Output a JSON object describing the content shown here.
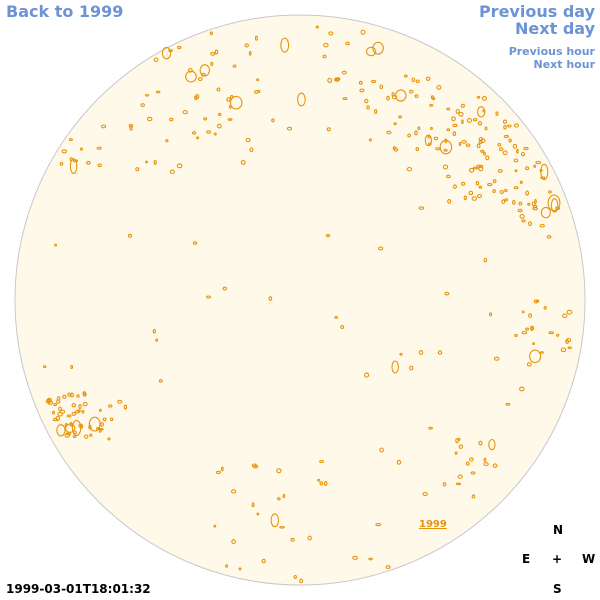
{
  "nav": {
    "back": "Back to 1999",
    "previous_day": "Previous day",
    "next_day": "Next day",
    "previous_hour": "Previous hour",
    "next_hour": "Next hour"
  },
  "timestamp": "1999-03-01T18:01:32",
  "year_label": "1999",
  "compass": {
    "north": "N",
    "east": "E",
    "center": "+",
    "west": "W",
    "south": "S"
  },
  "colors": {
    "disk_fill": "#fff9ea",
    "disk_stroke": "#c8c8c8",
    "contour": "#e8930a",
    "link": "#6b93d6"
  }
}
